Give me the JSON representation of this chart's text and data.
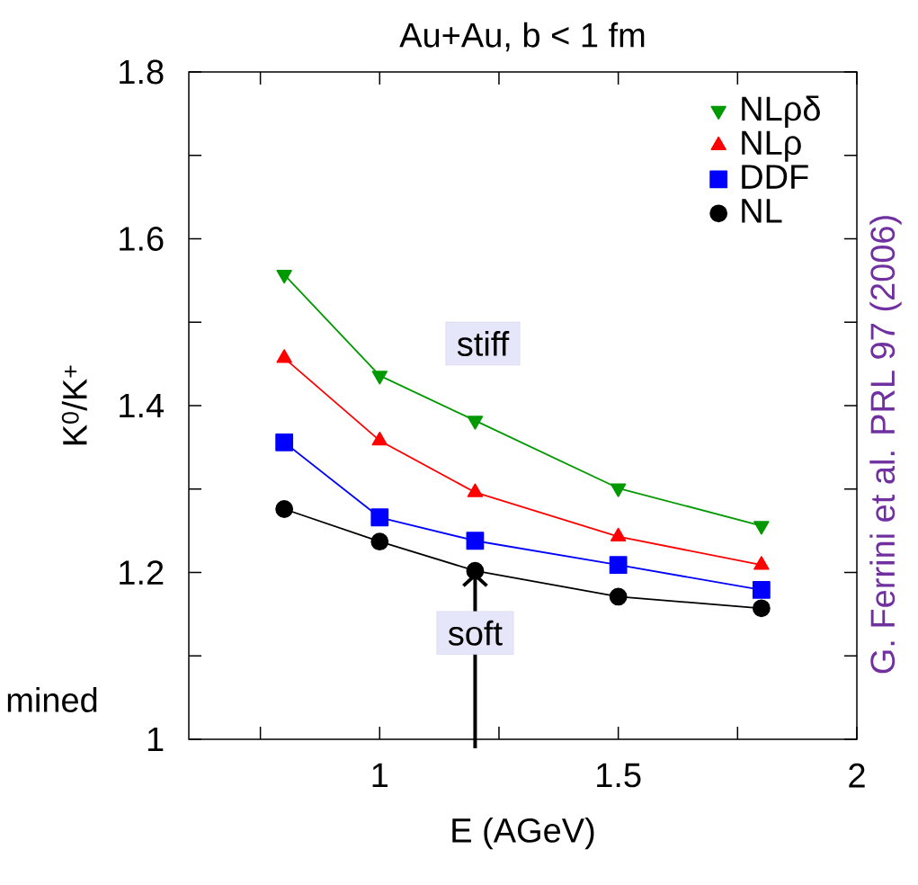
{
  "chart_data": {
    "type": "line",
    "title": "Au+Au, b < 1 fm",
    "xlabel": "E    (AGeV)",
    "ylabel": "K$^{0}$/K$^{+}$",
    "x": [
      0.8,
      1.0,
      1.2,
      1.5,
      1.8
    ],
    "series": [
      {
        "name": "NLρδ",
        "color": "#009900",
        "marker": "triangle down",
        "values": [
          1.557,
          1.436,
          1.382,
          1.301,
          1.256
        ]
      },
      {
        "name": "NLρ",
        "color": "#ff0000",
        "marker": "triangle",
        "values": [
          1.457,
          1.358,
          1.296,
          1.243,
          1.209
        ]
      },
      {
        "name": "DDF",
        "color": "#0000ff",
        "marker": "square",
        "values": [
          1.356,
          1.266,
          1.238,
          1.209,
          1.179
        ]
      },
      {
        "name": "NL",
        "color": "#000000",
        "marker": "circle",
        "values": [
          1.276,
          1.237,
          1.202,
          1.171,
          1.157
        ]
      }
    ],
    "xlim": [
      0.6,
      2
    ],
    "ylim": [
      1,
      1.8
    ],
    "xticks": [
      {
        "value": 0.75,
        "label": null
      },
      1,
      {
        "value": 1.25,
        "label": null
      },
      1.5,
      {
        "value": 1.75,
        "label": null
      },
      2
    ],
    "yticks": [
      1,
      {
        "value": 1.1,
        "label": null
      },
      1.2,
      {
        "value": 1.3,
        "label": null
      },
      1.4,
      {
        "value": 1.5,
        "label": null
      },
      1.6,
      {
        "value": 1.7,
        "label": null
      },
      1.8
    ],
    "legend": "top right",
    "grid": false,
    "line_style": "solid",
    "annotations": [
      "stiff",
      {
        "text": "soft",
        "x": 1.2,
        "y": 1.202
      },
      "G. Ferrini et al. PRL 97 (2006)",
      "mined"
    ]
  }
}
